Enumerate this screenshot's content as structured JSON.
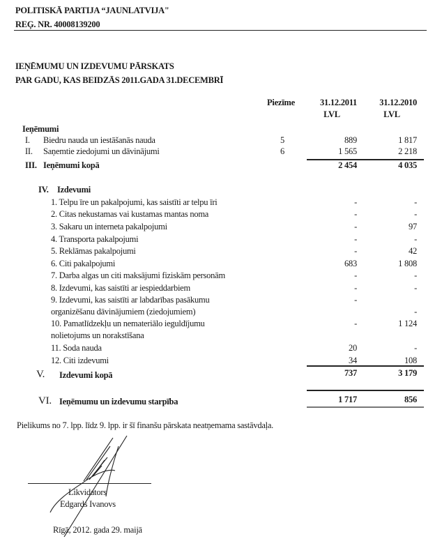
{
  "header": {
    "org_name": "POLITISKĀ PARTIJA “JAUNLATVIJA\"",
    "reg_nr": "REĢ. NR. 40008139200"
  },
  "title": {
    "line1": "IEŅĒMUMU UN IZDEVUMU PĀRSKATS",
    "line2": "PAR GADU, KAS BEIDZĀS 2011.GADA 31.DECEMBRĪ"
  },
  "columns": {
    "note": "Piezīme",
    "y2011": "31.12.2011",
    "y2010": "31.12.2010",
    "currency_2011": "LVL",
    "currency_2010": "LVL"
  },
  "income": {
    "heading": "Ieņēmumi",
    "rows": [
      {
        "num": "I.",
        "label": "Biedru nauda un iestāšanās nauda",
        "note": "5",
        "v2011": "889",
        "v2010": "1 817"
      },
      {
        "num": "II.",
        "label": "Saņemtie ziedojumi un dāvinājumi",
        "note": "6",
        "v2011": "1 565",
        "v2010": "2 218"
      }
    ],
    "total": {
      "num": "III.",
      "label": "Ieņēmumi kopā",
      "v2011": "2 454",
      "v2010": "4 035"
    }
  },
  "expenses": {
    "num": "IV.",
    "heading": "Izdevumi",
    "rows": [
      {
        "label": "1. Telpu īre un pakalpojumi, kas saistīti ar telpu īri",
        "v2011": "-",
        "v2010": "-"
      },
      {
        "label": "2. Citas nekustamas vai kustamas mantas noma",
        "v2011": "-",
        "v2010": "-"
      },
      {
        "label": "3. Sakaru un interneta pakalpojumi",
        "v2011": "-",
        "v2010": "97"
      },
      {
        "label": "4. Transporta pakalpojumi",
        "v2011": "-",
        "v2010": "-"
      },
      {
        "label": "5. Reklāmas pakalpojumi",
        "v2011": "-",
        "v2010": "42"
      },
      {
        "label": "6. Citi pakalpojumi",
        "v2011": "683",
        "v2010": "1 808"
      },
      {
        "label": "7. Darba algas un citi maksājumi fiziskām personām",
        "v2011": "-",
        "v2010": "-"
      },
      {
        "label": "8. Izdevumi, kas saistīti ar iespieddarbiem",
        "v2011": "-",
        "v2010": "-"
      },
      {
        "label": "9. Izdevumi, kas saistīti ar labdarības pasākumu",
        "label2": "organizēšanu dāvinājumiem (ziedojumiem)",
        "v2011": "-",
        "v2010": "-"
      },
      {
        "label": "10. Pamatlīdzekļu un nemateriālo ieguldījumu",
        "label2": "nolietojums un  norakstīšana",
        "v2011": "-",
        "v2010": "1 124"
      },
      {
        "label": "11. Soda nauda",
        "v2011": "20",
        "v2010": "-"
      },
      {
        "label": "12. Citi izdevumi",
        "v2011": "34",
        "v2010": "108"
      }
    ],
    "total": {
      "num": "V.",
      "label": "Izdevumi kopā",
      "v2011": "737",
      "v2010": "3 179"
    }
  },
  "difference": {
    "num": "VI.",
    "label": "Ieņēmumu un izdevumu starpība",
    "v2011": "1 717",
    "v2010": "856"
  },
  "footer": {
    "annex_note": "Pielikums no 7. lpp. līdz 9. lpp. ir šī finanšu pārskata neatņemama sastāvdaļa.",
    "signer_role": "Likvidators",
    "signer_name": "Edgards Ivanovs",
    "place_date": "Rīgā, 2012. gada 29. maijā"
  }
}
